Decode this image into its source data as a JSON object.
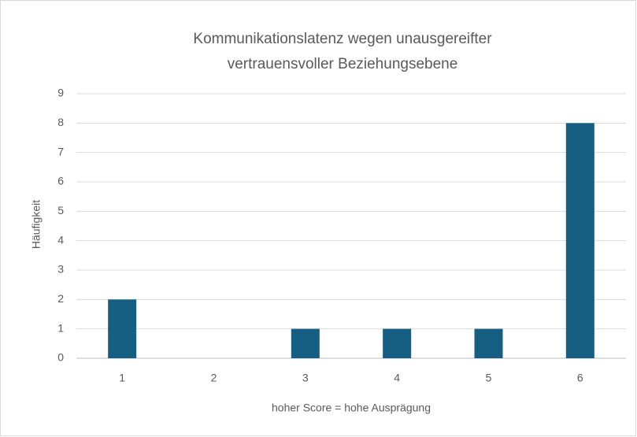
{
  "chart_data": {
    "type": "bar",
    "title": [
      "Kommunikationslatenz wegen unausgereifter",
      "vertrauensvoller Beziehungsebene"
    ],
    "x_label": "hoher Score = hohe Ausprägung",
    "y_label": "Häufigkeit",
    "categories": [
      "1",
      "2",
      "3",
      "4",
      "5",
      "6"
    ],
    "values": [
      2,
      0,
      1,
      1,
      1,
      8
    ],
    "color": "#175e83",
    "ylim": [
      0,
      9
    ],
    "yticks": [
      0,
      1,
      2,
      3,
      4,
      5,
      6,
      7,
      8,
      9
    ],
    "grid": true
  }
}
